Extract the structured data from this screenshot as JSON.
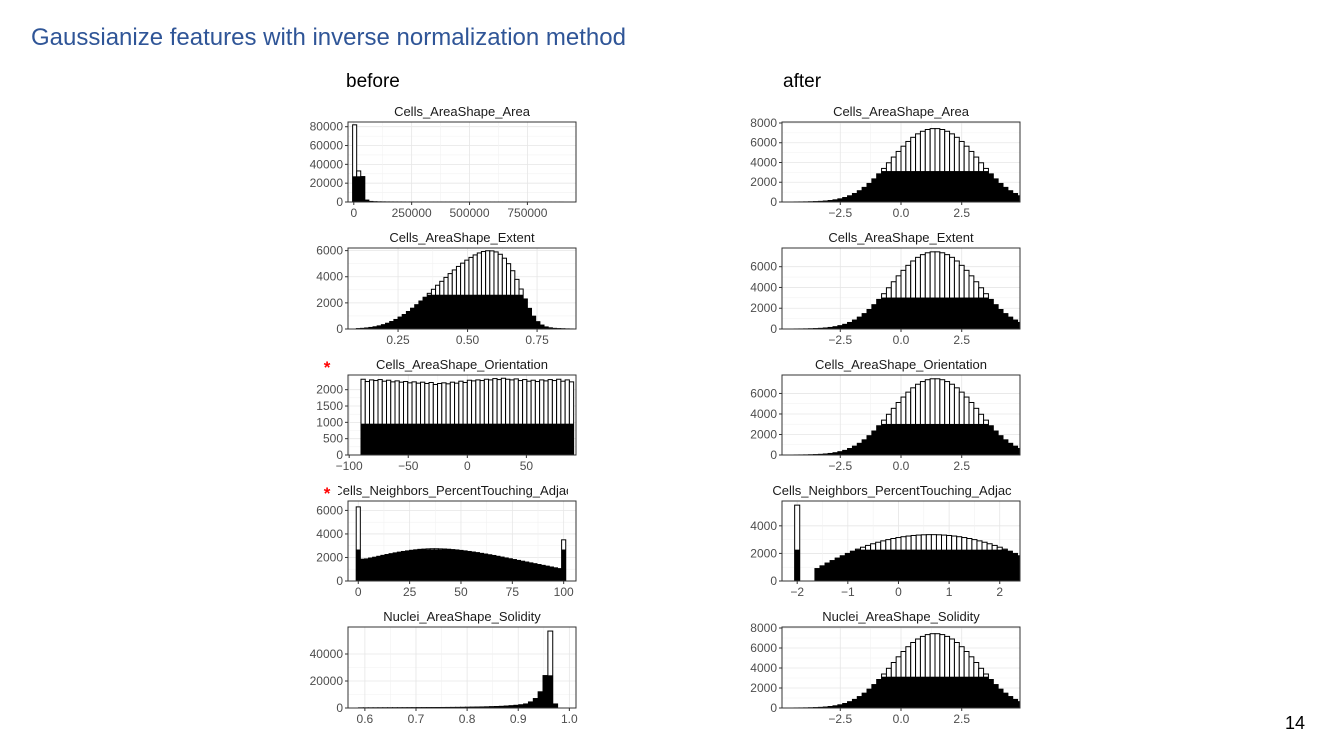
{
  "slide": {
    "title": "Gaussianize features with inverse normalization method",
    "left_header": "before",
    "right_header": "after",
    "page_number": "14",
    "marker_symbol": "*",
    "marker_color": "#ff0000",
    "title_color": "#2f5597"
  },
  "chart_data": [
    {
      "id": "before-area",
      "type": "bar",
      "title": "Cells_AreaShape_Area",
      "xlim": [
        -25000,
        960000
      ],
      "ylim": [
        0,
        85000
      ],
      "xticks": [
        0,
        250000,
        500000,
        750000
      ],
      "xtick_labels": [
        "0",
        "250000",
        "500000",
        "750000"
      ],
      "yticks": [
        0,
        20000,
        40000,
        60000,
        80000
      ],
      "ytick_labels": [
        "0",
        "20000",
        "40000",
        "60000",
        "80000"
      ],
      "bin_start": -5000,
      "bin_width": 17500,
      "overlay_height": 27000,
      "marked": false,
      "values": [
        82000,
        33000,
        27000,
        2000,
        600,
        300,
        200,
        150,
        100,
        80,
        60,
        50,
        40,
        30,
        30,
        20,
        20,
        20,
        20,
        20,
        20,
        20,
        20,
        20,
        20,
        20,
        20,
        20,
        20,
        20,
        20,
        20,
        20,
        20,
        20,
        20,
        20,
        20,
        20,
        20,
        20,
        20,
        20,
        20,
        20,
        20,
        20,
        20,
        20,
        20,
        20,
        20
      ]
    },
    {
      "id": "before-extent",
      "type": "bar",
      "title": "Cells_AreaShape_Extent",
      "xlim": [
        0.07,
        0.89
      ],
      "ylim": [
        0,
        6200
      ],
      "xticks": [
        0.25,
        0.5,
        0.75
      ],
      "xtick_labels": [
        "0.25",
        "0.50",
        "0.75"
      ],
      "yticks": [
        0,
        2000,
        4000,
        6000
      ],
      "ytick_labels": [
        "0",
        "2000",
        "4000",
        "6000"
      ],
      "bin_start": 0.1,
      "bin_width": 0.015,
      "overlay_height": 2600,
      "marked": false,
      "values": [
        30,
        50,
        80,
        120,
        170,
        240,
        330,
        440,
        570,
        730,
        910,
        1110,
        1340,
        1590,
        1860,
        2140,
        2430,
        2730,
        3040,
        3350,
        3650,
        3950,
        4240,
        4520,
        4790,
        5040,
        5270,
        5480,
        5670,
        5820,
        5930,
        5990,
        5980,
        5900,
        5720,
        5420,
        5000,
        4460,
        3800,
        3060,
        2300,
        1580,
        980,
        560,
        300,
        160,
        90,
        50,
        30,
        20,
        10,
        5
      ]
    },
    {
      "id": "before-orientation",
      "type": "bar",
      "title": "Cells_AreaShape_Orientation",
      "xlim": [
        -101,
        92
      ],
      "ylim": [
        0,
        2450
      ],
      "xticks": [
        -100,
        -50,
        0,
        50
      ],
      "xtick_labels": [
        "−100",
        "−50",
        "0",
        "50"
      ],
      "yticks": [
        0,
        500,
        1000,
        1500,
        2000
      ],
      "ytick_labels": [
        "0",
        "500",
        "1000",
        "1500",
        "2000"
      ],
      "bin_start": -90,
      "bin_width": 3.6,
      "overlay_height": 950,
      "marked": true,
      "values": [
        2320,
        2250,
        2300,
        2280,
        2310,
        2260,
        2290,
        2240,
        2270,
        2230,
        2250,
        2210,
        2240,
        2200,
        2230,
        2190,
        2220,
        2160,
        2190,
        2210,
        2180,
        2230,
        2200,
        2260,
        2220,
        2290,
        2270,
        2300,
        2280,
        2320,
        2300,
        2340,
        2310,
        2350,
        2320,
        2300,
        2330,
        2280,
        2310,
        2260,
        2290,
        2250,
        2300,
        2270,
        2310,
        2280,
        2320,
        2260,
        2300,
        2240
      ]
    },
    {
      "id": "before-percent-touching",
      "type": "bar",
      "title": "Cells_Neighbors_PercentTouching_Adjacent",
      "xlim": [
        -5,
        106
      ],
      "ylim": [
        0,
        6800
      ],
      "xticks": [
        0,
        25,
        50,
        75,
        100
      ],
      "xtick_labels": [
        "0",
        "25",
        "50",
        "75",
        "100"
      ],
      "yticks": [
        0,
        2000,
        4000,
        6000
      ],
      "ytick_labels": [
        "0",
        "2000",
        "4000",
        "6000"
      ],
      "bin_start": -1,
      "bin_width": 2,
      "overlay_height": 2650,
      "marked": true,
      "values": [
        6300,
        1850,
        1880,
        1950,
        2020,
        2100,
        2180,
        2250,
        2320,
        2390,
        2450,
        2510,
        2560,
        2610,
        2650,
        2690,
        2710,
        2730,
        2740,
        2740,
        2730,
        2720,
        2700,
        2670,
        2640,
        2600,
        2560,
        2510,
        2460,
        2410,
        2350,
        2290,
        2230,
        2170,
        2100,
        2030,
        1960,
        1890,
        1820,
        1750,
        1680,
        1610,
        1540,
        1470,
        1400,
        1330,
        1260,
        1190,
        1120,
        1050,
        3500
      ]
    },
    {
      "id": "before-solidity",
      "type": "bar",
      "title": "Nuclei_AreaShape_Solidity",
      "xlim": [
        0.567,
        1.013
      ],
      "ylim": [
        0,
        60000
      ],
      "xticks": [
        0.6,
        0.7,
        0.8,
        0.9,
        1.0
      ],
      "xtick_labels": [
        "0.6",
        "0.7",
        "0.8",
        "0.9",
        "1.0"
      ],
      "yticks": [
        0,
        20000,
        40000
      ],
      "ytick_labels": [
        "0",
        "20000",
        "40000"
      ],
      "bin_start": 0.5875,
      "bin_width": 0.0095,
      "overlay_height": 24000,
      "marked": false,
      "values": [
        150,
        150,
        160,
        170,
        180,
        190,
        200,
        210,
        220,
        230,
        250,
        260,
        280,
        300,
        320,
        340,
        360,
        390,
        420,
        450,
        490,
        530,
        580,
        640,
        700,
        780,
        870,
        980,
        1100,
        1250,
        1450,
        1700,
        2000,
        2400,
        3000,
        4500,
        7000,
        12000,
        24000,
        57000,
        3000
      ]
    },
    {
      "id": "after-area",
      "type": "bar",
      "title": "Cells_AreaShape_Area",
      "xlim": [
        -4.9,
        4.9
      ],
      "ylim": [
        0,
        8100
      ],
      "xticks": [
        -2.5,
        0,
        2.5
      ],
      "xtick_labels": [
        "−2.5",
        "0.0",
        "2.5"
      ],
      "yticks": [
        0,
        2000,
        4000,
        6000,
        8000
      ],
      "ytick_labels": [
        "0",
        "2000",
        "4000",
        "6000",
        "8000"
      ],
      "bin_start": -4.4,
      "bin_width": 0.2,
      "overlay_height": 3100,
      "marked": false,
      "values": [
        5,
        8,
        15,
        25,
        40,
        65,
        100,
        150,
        220,
        320,
        450,
        630,
        860,
        1140,
        1480,
        1880,
        2340,
        2850,
        3400,
        3970,
        4550,
        5120,
        5650,
        6130,
        6550,
        6900,
        7160,
        7340,
        7430,
        7430,
        7340,
        7160,
        6900,
        6550,
        6130,
        5650,
        5120,
        4550,
        3970,
        3400,
        2850,
        2340,
        1880,
        1480,
        1140,
        860,
        630,
        450
      ]
    },
    {
      "id": "after-extent",
      "type": "bar",
      "title": "Cells_AreaShape_Extent",
      "xlim": [
        -4.9,
        4.9
      ],
      "ylim": [
        0,
        7800
      ],
      "xticks": [
        -2.5,
        0,
        2.5
      ],
      "xtick_labels": [
        "−2.5",
        "0.0",
        "2.5"
      ],
      "yticks": [
        0,
        2000,
        4000,
        6000
      ],
      "ytick_labels": [
        "0",
        "2000",
        "4000",
        "6000"
      ],
      "bin_start": -4.4,
      "bin_width": 0.2,
      "overlay_height": 3000,
      "marked": false,
      "values": [
        5,
        8,
        15,
        25,
        40,
        65,
        100,
        150,
        220,
        320,
        450,
        630,
        860,
        1140,
        1480,
        1880,
        2340,
        2850,
        3400,
        3970,
        4550,
        5120,
        5650,
        6130,
        6550,
        6900,
        7160,
        7340,
        7430,
        7430,
        7340,
        7160,
        6900,
        6550,
        6130,
        5650,
        5120,
        4550,
        3970,
        3400,
        2850,
        2340,
        1880,
        1480,
        1140,
        860,
        630,
        450
      ]
    },
    {
      "id": "after-orientation",
      "type": "bar",
      "title": "Cells_AreaShape_Orientation",
      "xlim": [
        -4.9,
        4.9
      ],
      "ylim": [
        0,
        7800
      ],
      "xticks": [
        -2.5,
        0,
        2.5
      ],
      "xtick_labels": [
        "−2.5",
        "0.0",
        "2.5"
      ],
      "yticks": [
        0,
        2000,
        4000,
        6000
      ],
      "ytick_labels": [
        "0",
        "2000",
        "4000",
        "6000"
      ],
      "bin_start": -4.4,
      "bin_width": 0.2,
      "overlay_height": 3000,
      "marked": false,
      "values": [
        5,
        8,
        15,
        25,
        40,
        65,
        100,
        150,
        220,
        320,
        450,
        630,
        860,
        1140,
        1480,
        1880,
        2340,
        2850,
        3400,
        3970,
        4550,
        5120,
        5650,
        6130,
        6550,
        6900,
        7160,
        7340,
        7430,
        7430,
        7340,
        7160,
        6900,
        6550,
        6130,
        5650,
        5120,
        4550,
        3970,
        3400,
        2850,
        2340,
        1880,
        1480,
        1140,
        860,
        630,
        450
      ]
    },
    {
      "id": "after-percent-touching",
      "type": "bar",
      "title": "Cells_Neighbors_PercentTouching_Adjacent",
      "xlim": [
        -2.3,
        2.4
      ],
      "ylim": [
        0,
        5800
      ],
      "xticks": [
        -2,
        -1,
        0,
        1,
        2
      ],
      "xtick_labels": [
        "−2",
        "−1",
        "0",
        "1",
        "2"
      ],
      "yticks": [
        0,
        2000,
        4000
      ],
      "ytick_labels": [
        "0",
        "2000",
        "4000"
      ],
      "bin_start": -2.05,
      "bin_width": 0.1,
      "overlay_height": 2250,
      "marked": false,
      "values": [
        5500,
        0,
        0,
        0,
        900,
        1100,
        1300,
        1480,
        1660,
        1830,
        2000,
        2160,
        2310,
        2450,
        2580,
        2700,
        2810,
        2910,
        3000,
        3080,
        3150,
        3210,
        3260,
        3300,
        3330,
        3350,
        3360,
        3360,
        3350,
        3330,
        3300,
        3260,
        3210,
        3150,
        3080,
        3000,
        2910,
        2810,
        2700,
        2580,
        2450,
        2310,
        2160,
        2000,
        1830,
        1660,
        1480,
        1300,
        1100,
        900,
        0,
        0,
        0,
        3000
      ]
    },
    {
      "id": "after-solidity",
      "type": "bar",
      "title": "Nuclei_AreaShape_Solidity",
      "xlim": [
        -4.9,
        4.9
      ],
      "ylim": [
        0,
        8100
      ],
      "xticks": [
        -2.5,
        0,
        2.5
      ],
      "xtick_labels": [
        "−2.5",
        "0.0",
        "2.5"
      ],
      "yticks": [
        0,
        2000,
        4000,
        6000,
        8000
      ],
      "ytick_labels": [
        "0",
        "2000",
        "4000",
        "6000",
        "8000"
      ],
      "bin_start": -4.4,
      "bin_width": 0.2,
      "overlay_height": 3100,
      "marked": false,
      "values": [
        5,
        8,
        15,
        25,
        40,
        65,
        100,
        150,
        220,
        320,
        450,
        630,
        860,
        1140,
        1480,
        1880,
        2340,
        2850,
        3400,
        3970,
        4550,
        5120,
        5650,
        6130,
        6550,
        6900,
        7160,
        7340,
        7430,
        7430,
        7340,
        7160,
        6900,
        6550,
        6130,
        5650,
        5120,
        4550,
        3970,
        3400,
        2850,
        2340,
        1880,
        1480,
        1140,
        860,
        630,
        450
      ]
    }
  ]
}
